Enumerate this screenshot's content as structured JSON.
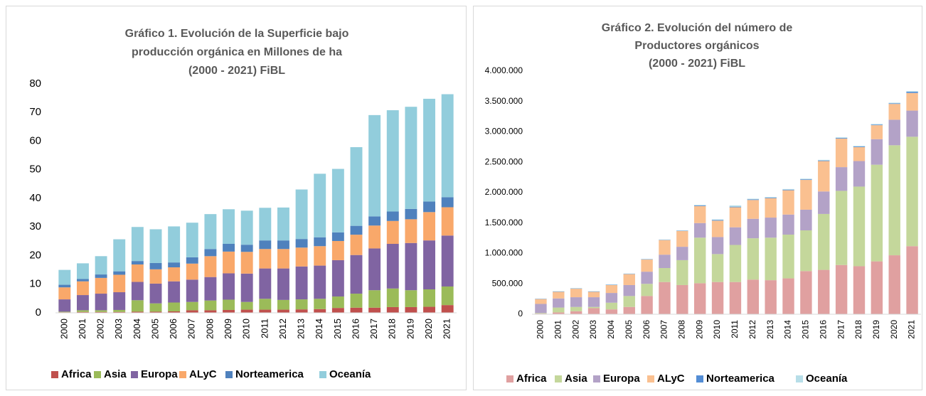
{
  "chart_data": [
    {
      "type": "stacked_bar",
      "title": [
        "Gráfico 1. Evolución de la Superficie bajo",
        "producción orgánica en Millones de ha",
        "(2000 - 2021) FiBL"
      ],
      "categories": [
        "2000",
        "2001",
        "2002",
        "2003",
        "2004",
        "2005",
        "2006",
        "2007",
        "2008",
        "2009",
        "2010",
        "2011",
        "2012",
        "2013",
        "2014",
        "2015",
        "2016",
        "2017",
        "2018",
        "2019",
        "2020",
        "2021"
      ],
      "series": [
        {
          "name": "Africa",
          "color": "#c0504d",
          "values": [
            0.2,
            0.3,
            0.3,
            0.3,
            0.4,
            0.4,
            0.5,
            0.9,
            0.9,
            1.0,
            1.1,
            1.1,
            1.1,
            1.2,
            1.3,
            1.7,
            1.8,
            1.8,
            2.0,
            2.0,
            2.1,
            2.7
          ]
        },
        {
          "name": "Asia",
          "color": "#9bbb59",
          "values": [
            0.2,
            0.6,
            0.6,
            0.7,
            4.0,
            2.9,
            3.1,
            2.9,
            3.4,
            3.6,
            2.7,
            3.8,
            3.4,
            3.5,
            3.6,
            4.0,
            4.9,
            6.1,
            6.5,
            5.9,
            6.1,
            6.5
          ]
        },
        {
          "name": "Europa",
          "color": "#8064a2",
          "values": [
            4.3,
            5.3,
            5.8,
            6.2,
            6.4,
            6.9,
            7.4,
            7.8,
            8.2,
            9.2,
            9.9,
            10.6,
            11.0,
            11.5,
            11.6,
            12.7,
            13.5,
            14.6,
            15.6,
            16.5,
            17.1,
            17.8
          ]
        },
        {
          "name": "ALyC",
          "color": "#f9a86a",
          "values": [
            4.2,
            4.8,
            5.5,
            6.1,
            6.1,
            5.0,
            4.9,
            5.6,
            7.3,
            7.6,
            7.6,
            6.8,
            6.8,
            6.6,
            6.8,
            6.7,
            7.1,
            8.0,
            8.0,
            8.3,
            9.9,
            9.9
          ]
        },
        {
          "name": "Norteamerica",
          "color": "#4f81bd",
          "values": [
            0.9,
            0.8,
            1.2,
            1.2,
            1.2,
            2.2,
            1.7,
            2.2,
            2.5,
            2.7,
            2.5,
            3.0,
            3.0,
            3.0,
            3.1,
            3.0,
            3.1,
            3.2,
            3.3,
            3.6,
            3.7,
            3.5
          ]
        },
        {
          "name": "Oceanía",
          "color": "#92cddc",
          "values": [
            5.2,
            5.5,
            6.4,
            11.2,
            11.9,
            11.8,
            12.6,
            12.1,
            12.2,
            12.1,
            11.9,
            11.4,
            11.5,
            17.3,
            22.2,
            22.2,
            27.5,
            35.4,
            35.4,
            35.7,
            35.9,
            36.0
          ]
        }
      ],
      "ylim": [
        0,
        80
      ],
      "yticks": [
        0,
        10,
        20,
        30,
        40,
        50,
        60,
        70,
        80
      ]
    },
    {
      "type": "stacked_bar",
      "title": [
        "Gráfico 2. Evolución del número de",
        "Productores orgánicos",
        "(2000 - 2021) FiBL"
      ],
      "categories": [
        "2000",
        "2001",
        "2002",
        "2003",
        "2004",
        "2005",
        "2006",
        "2007",
        "2008",
        "2009",
        "2010",
        "2011",
        "2012",
        "2013",
        "2014",
        "2015",
        "2016",
        "2017",
        "2018",
        "2019",
        "2020",
        "2021"
      ],
      "series": [
        {
          "name": "Africa",
          "color": "#e0a0a0",
          "values": [
            10000,
            30000,
            50000,
            100000,
            80000,
            120000,
            300000,
            530000,
            480000,
            510000,
            530000,
            530000,
            570000,
            560000,
            590000,
            710000,
            730000,
            810000,
            790000,
            870000,
            970000,
            1120000
          ]
        },
        {
          "name": "Asia",
          "color": "#c4d79b",
          "values": [
            10000,
            80000,
            70000,
            20000,
            110000,
            180000,
            200000,
            230000,
            410000,
            750000,
            460000,
            610000,
            680000,
            700000,
            720000,
            670000,
            920000,
            1220000,
            1310000,
            1590000,
            1810000,
            1800000
          ]
        },
        {
          "name": "Europa",
          "color": "#b3a2c7",
          "values": [
            150000,
            150000,
            160000,
            160000,
            160000,
            180000,
            200000,
            220000,
            220000,
            240000,
            280000,
            290000,
            320000,
            330000,
            330000,
            340000,
            370000,
            390000,
            420000,
            420000,
            420000,
            430000
          ]
        },
        {
          "name": "ALyC",
          "color": "#fac090",
          "values": [
            80000,
            110000,
            140000,
            90000,
            130000,
            180000,
            200000,
            240000,
            260000,
            280000,
            270000,
            330000,
            310000,
            320000,
            400000,
            490000,
            500000,
            470000,
            230000,
            230000,
            260000,
            290000
          ]
        },
        {
          "name": "Norteamerica",
          "color": "#538dd5",
          "values": [
            5000,
            5000,
            5000,
            5000,
            5000,
            5000,
            5000,
            5000,
            5000,
            10000,
            10000,
            10000,
            10000,
            10000,
            10000,
            10000,
            10000,
            10000,
            10000,
            10000,
            10000,
            20000
          ]
        },
        {
          "name": "Oceanía",
          "color": "#b7dee8",
          "values": [
            3000,
            5000,
            5000,
            5000,
            5000,
            5000,
            5000,
            5000,
            5000,
            10000,
            10000,
            20000,
            10000,
            10000,
            10000,
            10000,
            10000,
            10000,
            10000,
            10000,
            10000,
            10000
          ]
        }
      ],
      "ylim": [
        0,
        4000000
      ],
      "yticks": [
        0,
        {
          "value": 500000,
          "label": "500.000"
        },
        {
          "value": 1000000,
          "label": "1.000.000"
        },
        {
          "value": 1500000,
          "label": "1.500.000"
        },
        {
          "value": 2000000,
          "label": "2.000.000"
        },
        {
          "value": 2500000,
          "label": "2.500.000"
        },
        {
          "value": 3000000,
          "label": "3.000.000"
        },
        {
          "value": 3500000,
          "label": "3.500.000"
        },
        {
          "value": 4000000,
          "label": "4.000.000"
        }
      ]
    }
  ]
}
